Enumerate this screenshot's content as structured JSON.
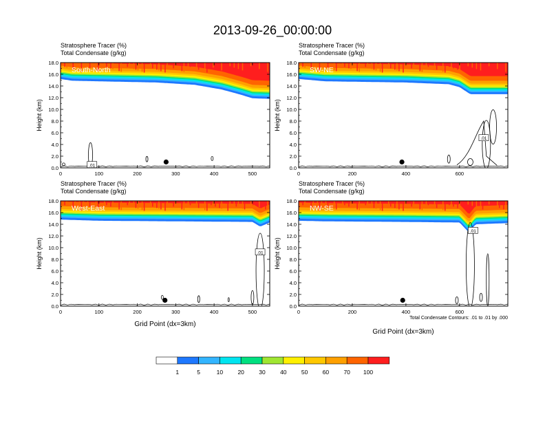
{
  "title": "2013-09-26_00:00:00",
  "colors": [
    "#ffffff",
    "#1e78ff",
    "#33b5ff",
    "#00e5f0",
    "#00e080",
    "#00cc00",
    "#a0e632",
    "#fff000",
    "#ffc800",
    "#ffa000",
    "#ff6400",
    "#ff1e1e"
  ],
  "legend_labels": [
    "1",
    "5",
    "10",
    "20",
    "30",
    "40",
    "50",
    "60",
    "70",
    "100"
  ],
  "contour_note": "Total Condensate Contours: .01 to .01 by .000",
  "chart_data": [
    {
      "type": "heatmap",
      "name": "South-North",
      "label_shade": "South-North",
      "title_line1": "Stratosphere Tracer   (%)",
      "title_line2": "Total Condensate   (g/kg)",
      "ylabel": "Height (km)",
      "xlabel": "",
      "xlim": [
        0,
        545
      ],
      "ylim": [
        0,
        18
      ],
      "xticks": [
        0,
        100,
        200,
        300,
        400,
        500
      ],
      "yticks": [
        0,
        2,
        4,
        6,
        8,
        10,
        12,
        14,
        16,
        18
      ],
      "ytick_labels": [
        "0.0",
        "2.0",
        "4.0",
        "6.0",
        "8.0",
        "10.0",
        "12.0",
        "14.0",
        "16.0",
        "18.0"
      ],
      "tracer_base_km": [
        [
          0,
          15.2
        ],
        [
          30,
          14.9
        ],
        [
          100,
          14.8
        ],
        [
          250,
          14.6
        ],
        [
          350,
          14.2
        ],
        [
          420,
          13.4
        ],
        [
          470,
          12.5
        ],
        [
          500,
          11.9
        ],
        [
          545,
          11.8
        ]
      ],
      "contour_labels": [
        {
          "x": 82,
          "y": 0.5,
          "text": ".01"
        }
      ],
      "marker_x": 275,
      "marker_y": 1.0
    },
    {
      "type": "heatmap",
      "name": "SW-NE",
      "label_shade": "SW-NE",
      "title_line1": "Stratosphere Tracer   (%)",
      "title_line2": "Total Condensate   (g/kg)",
      "ylabel": "Height (km)",
      "xlabel": "",
      "xlim": [
        0,
        780
      ],
      "ylim": [
        0,
        18
      ],
      "xticks": [
        0,
        200,
        400,
        600
      ],
      "yticks": [
        0,
        2,
        4,
        6,
        8,
        10,
        12,
        14,
        16,
        18
      ],
      "ytick_labels": [
        "0.0",
        "2.0",
        "4.0",
        "6.0",
        "8.0",
        "10.0",
        "12.0",
        "14.0",
        "16.0",
        "18.0"
      ],
      "tracer_base_km": [
        [
          0,
          15.2
        ],
        [
          100,
          14.8
        ],
        [
          400,
          14.6
        ],
        [
          560,
          14.3
        ],
        [
          600,
          13.8
        ],
        [
          640,
          12.6
        ]
      ],
      "contour_labels": [
        {
          "x": 690,
          "y": 5.1,
          "text": ".01"
        }
      ],
      "marker_x": 385,
      "marker_y": 1.0
    },
    {
      "type": "heatmap",
      "name": "West-East",
      "label_shade": "West-East",
      "title_line1": "Stratosphere Tracer   (%)",
      "title_line2": "Total Condensate   (g/kg)",
      "ylabel": "Height (km)",
      "xlabel": "Grid Point (dx=3km)",
      "xlim": [
        0,
        545
      ],
      "ylim": [
        0,
        18
      ],
      "xticks": [
        0,
        100,
        200,
        300,
        400,
        500
      ],
      "yticks": [
        0,
        2,
        4,
        6,
        8,
        10,
        12,
        14,
        16,
        18
      ],
      "ytick_labels": [
        "0.0",
        "2.0",
        "4.0",
        "6.0",
        "8.0",
        "10.0",
        "12.0",
        "14.0",
        "16.0",
        "18.0"
      ],
      "tracer_base_km": [
        [
          0,
          14.8
        ],
        [
          100,
          14.6
        ],
        [
          300,
          14.5
        ],
        [
          500,
          14.4
        ],
        [
          520,
          13.6
        ],
        [
          545,
          14.3
        ]
      ],
      "contour_labels": [
        {
          "x": 520,
          "y": 9.2,
          "text": ".01"
        }
      ],
      "marker_x": 272,
      "marker_y": 1.0
    },
    {
      "type": "heatmap",
      "name": "NW-SE",
      "label_shade": "NW-SE",
      "title_line1": "Stratosphere Tracer   (%)",
      "title_line2": "Total Condensate   (g/kg)",
      "ylabel": "Height (km)",
      "xlabel": "Grid Point (dx=3km)",
      "xlim": [
        0,
        780
      ],
      "ylim": [
        0,
        18
      ],
      "xticks": [
        0,
        200,
        400,
        600
      ],
      "yticks": [
        0,
        2,
        4,
        6,
        8,
        10,
        12,
        14,
        16,
        18
      ],
      "ytick_labels": [
        "0.0",
        "2.0",
        "4.0",
        "6.0",
        "8.0",
        "10.0",
        "12.0",
        "14.0",
        "16.0",
        "18.0"
      ],
      "tracer_base_km": [
        [
          0,
          14.6
        ],
        [
          100,
          14.5
        ],
        [
          400,
          14.4
        ],
        [
          600,
          14.3
        ],
        [
          635,
          12.6
        ],
        [
          660,
          14.0
        ],
        [
          780,
          14.2
        ]
      ],
      "contour_labels": [
        {
          "x": 650,
          "y": 12.9,
          "text": ".01"
        }
      ],
      "marker_x": 388,
      "marker_y": 1.0
    }
  ]
}
